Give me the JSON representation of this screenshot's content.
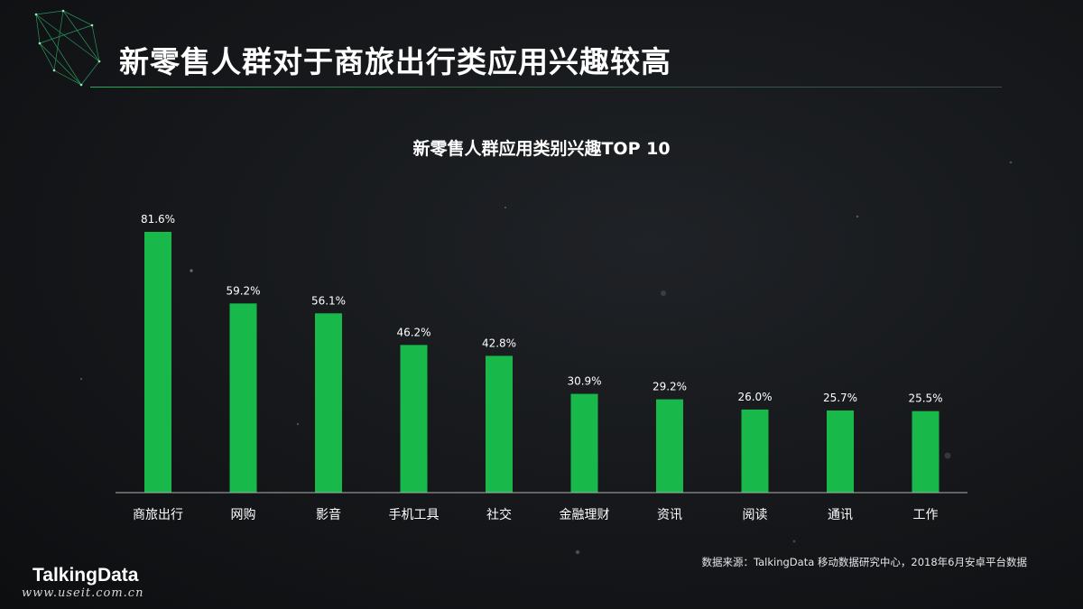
{
  "page": {
    "title": "新零售人群对于商旅出行类应用兴趣较高",
    "source": "数据来源：TalkingData 移动数据研究中心，2018年6月安卓平台数据",
    "brand": "TalkingData",
    "watermark": "www.useit.com.cn"
  },
  "colors": {
    "bar": "#18b84a",
    "axis": "#b0b0b0",
    "text": "#ffffff"
  },
  "chart_data": {
    "type": "bar",
    "title": "新零售人群应用类别兴趣TOP 10",
    "categories": [
      "商旅出行",
      "网购",
      "影音",
      "手机工具",
      "社交",
      "金融理财",
      "资讯",
      "阅读",
      "通讯",
      "工作"
    ],
    "values": [
      81.6,
      59.2,
      56.1,
      46.2,
      42.8,
      30.9,
      29.2,
      26.0,
      25.7,
      25.5
    ],
    "data_labels": [
      "81.6%",
      "59.2%",
      "56.1%",
      "46.2%",
      "42.8%",
      "30.9%",
      "29.2%",
      "26.0%",
      "25.7%",
      "25.5%"
    ],
    "ylim": [
      0,
      100
    ],
    "grid": false,
    "legend": "none"
  }
}
